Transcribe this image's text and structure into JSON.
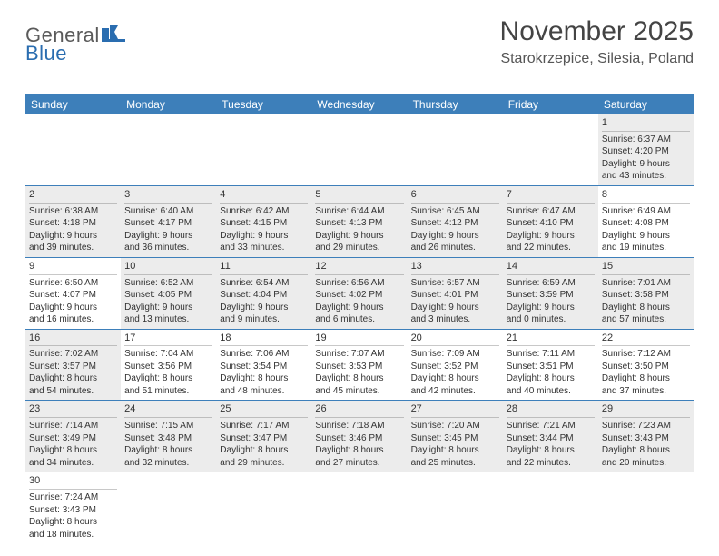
{
  "logo": {
    "part1": "General",
    "part2": "Blue"
  },
  "title": "November 2025",
  "location": "Starokrzepice, Silesia, Poland",
  "colors": {
    "header_bg": "#3d7fba",
    "header_text": "#ffffff",
    "shaded_bg": "#ececec",
    "border": "#3d7fba",
    "day_border": "#c8c8c8",
    "text": "#333333",
    "logo_gray": "#5a5a5a",
    "logo_blue": "#2a6db0"
  },
  "weekdays": [
    "Sunday",
    "Monday",
    "Tuesday",
    "Wednesday",
    "Thursday",
    "Friday",
    "Saturday"
  ],
  "weeks": [
    [
      {
        "day": "",
        "sunrise": "",
        "sunset": "",
        "daylight1": "",
        "daylight2": "",
        "empty": true
      },
      {
        "day": "",
        "sunrise": "",
        "sunset": "",
        "daylight1": "",
        "daylight2": "",
        "empty": true
      },
      {
        "day": "",
        "sunrise": "",
        "sunset": "",
        "daylight1": "",
        "daylight2": "",
        "empty": true
      },
      {
        "day": "",
        "sunrise": "",
        "sunset": "",
        "daylight1": "",
        "daylight2": "",
        "empty": true
      },
      {
        "day": "",
        "sunrise": "",
        "sunset": "",
        "daylight1": "",
        "daylight2": "",
        "empty": true
      },
      {
        "day": "",
        "sunrise": "",
        "sunset": "",
        "daylight1": "",
        "daylight2": "",
        "empty": true
      },
      {
        "day": "1",
        "sunrise": "Sunrise: 6:37 AM",
        "sunset": "Sunset: 4:20 PM",
        "daylight1": "Daylight: 9 hours",
        "daylight2": "and 43 minutes.",
        "shaded": true
      }
    ],
    [
      {
        "day": "2",
        "sunrise": "Sunrise: 6:38 AM",
        "sunset": "Sunset: 4:18 PM",
        "daylight1": "Daylight: 9 hours",
        "daylight2": "and 39 minutes.",
        "shaded": true
      },
      {
        "day": "3",
        "sunrise": "Sunrise: 6:40 AM",
        "sunset": "Sunset: 4:17 PM",
        "daylight1": "Daylight: 9 hours",
        "daylight2": "and 36 minutes.",
        "shaded": true
      },
      {
        "day": "4",
        "sunrise": "Sunrise: 6:42 AM",
        "sunset": "Sunset: 4:15 PM",
        "daylight1": "Daylight: 9 hours",
        "daylight2": "and 33 minutes.",
        "shaded": true
      },
      {
        "day": "5",
        "sunrise": "Sunrise: 6:44 AM",
        "sunset": "Sunset: 4:13 PM",
        "daylight1": "Daylight: 9 hours",
        "daylight2": "and 29 minutes.",
        "shaded": true
      },
      {
        "day": "6",
        "sunrise": "Sunrise: 6:45 AM",
        "sunset": "Sunset: 4:12 PM",
        "daylight1": "Daylight: 9 hours",
        "daylight2": "and 26 minutes.",
        "shaded": true
      },
      {
        "day": "7",
        "sunrise": "Sunrise: 6:47 AM",
        "sunset": "Sunset: 4:10 PM",
        "daylight1": "Daylight: 9 hours",
        "daylight2": "and 22 minutes.",
        "shaded": true
      },
      {
        "day": "8",
        "sunrise": "Sunrise: 6:49 AM",
        "sunset": "Sunset: 4:08 PM",
        "daylight1": "Daylight: 9 hours",
        "daylight2": "and 19 minutes."
      }
    ],
    [
      {
        "day": "9",
        "sunrise": "Sunrise: 6:50 AM",
        "sunset": "Sunset: 4:07 PM",
        "daylight1": "Daylight: 9 hours",
        "daylight2": "and 16 minutes."
      },
      {
        "day": "10",
        "sunrise": "Sunrise: 6:52 AM",
        "sunset": "Sunset: 4:05 PM",
        "daylight1": "Daylight: 9 hours",
        "daylight2": "and 13 minutes.",
        "shaded": true
      },
      {
        "day": "11",
        "sunrise": "Sunrise: 6:54 AM",
        "sunset": "Sunset: 4:04 PM",
        "daylight1": "Daylight: 9 hours",
        "daylight2": "and 9 minutes.",
        "shaded": true
      },
      {
        "day": "12",
        "sunrise": "Sunrise: 6:56 AM",
        "sunset": "Sunset: 4:02 PM",
        "daylight1": "Daylight: 9 hours",
        "daylight2": "and 6 minutes.",
        "shaded": true
      },
      {
        "day": "13",
        "sunrise": "Sunrise: 6:57 AM",
        "sunset": "Sunset: 4:01 PM",
        "daylight1": "Daylight: 9 hours",
        "daylight2": "and 3 minutes.",
        "shaded": true
      },
      {
        "day": "14",
        "sunrise": "Sunrise: 6:59 AM",
        "sunset": "Sunset: 3:59 PM",
        "daylight1": "Daylight: 9 hours",
        "daylight2": "and 0 minutes.",
        "shaded": true
      },
      {
        "day": "15",
        "sunrise": "Sunrise: 7:01 AM",
        "sunset": "Sunset: 3:58 PM",
        "daylight1": "Daylight: 8 hours",
        "daylight2": "and 57 minutes.",
        "shaded": true
      }
    ],
    [
      {
        "day": "16",
        "sunrise": "Sunrise: 7:02 AM",
        "sunset": "Sunset: 3:57 PM",
        "daylight1": "Daylight: 8 hours",
        "daylight2": "and 54 minutes.",
        "shaded": true
      },
      {
        "day": "17",
        "sunrise": "Sunrise: 7:04 AM",
        "sunset": "Sunset: 3:56 PM",
        "daylight1": "Daylight: 8 hours",
        "daylight2": "and 51 minutes."
      },
      {
        "day": "18",
        "sunrise": "Sunrise: 7:06 AM",
        "sunset": "Sunset: 3:54 PM",
        "daylight1": "Daylight: 8 hours",
        "daylight2": "and 48 minutes."
      },
      {
        "day": "19",
        "sunrise": "Sunrise: 7:07 AM",
        "sunset": "Sunset: 3:53 PM",
        "daylight1": "Daylight: 8 hours",
        "daylight2": "and 45 minutes."
      },
      {
        "day": "20",
        "sunrise": "Sunrise: 7:09 AM",
        "sunset": "Sunset: 3:52 PM",
        "daylight1": "Daylight: 8 hours",
        "daylight2": "and 42 minutes."
      },
      {
        "day": "21",
        "sunrise": "Sunrise: 7:11 AM",
        "sunset": "Sunset: 3:51 PM",
        "daylight1": "Daylight: 8 hours",
        "daylight2": "and 40 minutes."
      },
      {
        "day": "22",
        "sunrise": "Sunrise: 7:12 AM",
        "sunset": "Sunset: 3:50 PM",
        "daylight1": "Daylight: 8 hours",
        "daylight2": "and 37 minutes."
      }
    ],
    [
      {
        "day": "23",
        "sunrise": "Sunrise: 7:14 AM",
        "sunset": "Sunset: 3:49 PM",
        "daylight1": "Daylight: 8 hours",
        "daylight2": "and 34 minutes.",
        "shaded": true
      },
      {
        "day": "24",
        "sunrise": "Sunrise: 7:15 AM",
        "sunset": "Sunset: 3:48 PM",
        "daylight1": "Daylight: 8 hours",
        "daylight2": "and 32 minutes.",
        "shaded": true
      },
      {
        "day": "25",
        "sunrise": "Sunrise: 7:17 AM",
        "sunset": "Sunset: 3:47 PM",
        "daylight1": "Daylight: 8 hours",
        "daylight2": "and 29 minutes.",
        "shaded": true
      },
      {
        "day": "26",
        "sunrise": "Sunrise: 7:18 AM",
        "sunset": "Sunset: 3:46 PM",
        "daylight1": "Daylight: 8 hours",
        "daylight2": "and 27 minutes.",
        "shaded": true
      },
      {
        "day": "27",
        "sunrise": "Sunrise: 7:20 AM",
        "sunset": "Sunset: 3:45 PM",
        "daylight1": "Daylight: 8 hours",
        "daylight2": "and 25 minutes.",
        "shaded": true
      },
      {
        "day": "28",
        "sunrise": "Sunrise: 7:21 AM",
        "sunset": "Sunset: 3:44 PM",
        "daylight1": "Daylight: 8 hours",
        "daylight2": "and 22 minutes.",
        "shaded": true
      },
      {
        "day": "29",
        "sunrise": "Sunrise: 7:23 AM",
        "sunset": "Sunset: 3:43 PM",
        "daylight1": "Daylight: 8 hours",
        "daylight2": "and 20 minutes.",
        "shaded": true
      }
    ],
    [
      {
        "day": "30",
        "sunrise": "Sunrise: 7:24 AM",
        "sunset": "Sunset: 3:43 PM",
        "daylight1": "Daylight: 8 hours",
        "daylight2": "and 18 minutes."
      },
      {
        "day": "",
        "sunrise": "",
        "sunset": "",
        "daylight1": "",
        "daylight2": "",
        "empty": true
      },
      {
        "day": "",
        "sunrise": "",
        "sunset": "",
        "daylight1": "",
        "daylight2": "",
        "empty": true
      },
      {
        "day": "",
        "sunrise": "",
        "sunset": "",
        "daylight1": "",
        "daylight2": "",
        "empty": true
      },
      {
        "day": "",
        "sunrise": "",
        "sunset": "",
        "daylight1": "",
        "daylight2": "",
        "empty": true
      },
      {
        "day": "",
        "sunrise": "",
        "sunset": "",
        "daylight1": "",
        "daylight2": "",
        "empty": true
      },
      {
        "day": "",
        "sunrise": "",
        "sunset": "",
        "daylight1": "",
        "daylight2": "",
        "empty": true
      }
    ]
  ]
}
